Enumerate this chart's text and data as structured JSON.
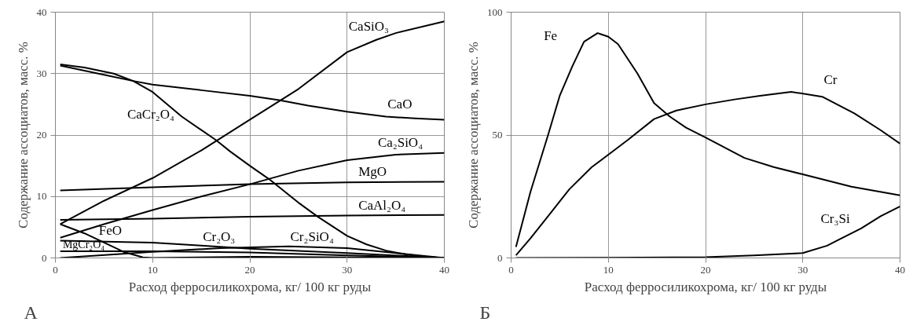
{
  "chart_data": [
    {
      "type": "line",
      "xlabel": "Расход ферросиликохрома, кг/ 100 кг руды",
      "ylabel": "Содержание ассоциатов, масс. %",
      "annotations": [
        "А"
      ],
      "xlim": [
        0,
        40
      ],
      "ylim": [
        0,
        40
      ],
      "xticks": [
        0,
        10,
        20,
        30,
        40
      ],
      "yticks": [
        0,
        10,
        20,
        30,
        40
      ],
      "grid": true,
      "legend": false,
      "marker": "none",
      "line_style": "solid",
      "series": [
        {
          "name": "CaSiO₃",
          "color": "#000000",
          "x": [
            0.5,
            5,
            10,
            15,
            20,
            25,
            30,
            33,
            35,
            40
          ],
          "values": [
            5.5,
            9.3,
            13,
            17.5,
            22.5,
            27.5,
            33.5,
            35.5,
            36.6,
            38.5
          ]
        },
        {
          "name": "CaCr₂O₄",
          "color": "#000000",
          "x": [
            0.5,
            3,
            6,
            8,
            10,
            13,
            16.5,
            18,
            20,
            22,
            25,
            27,
            30,
            32,
            34,
            36,
            38,
            40
          ],
          "values": [
            31.5,
            31,
            30,
            28.8,
            27,
            23,
            19.2,
            17.3,
            15,
            12.8,
            9,
            6.7,
            3.6,
            2.2,
            1.2,
            0.6,
            0.2,
            0
          ]
        },
        {
          "name": "CaO",
          "color": "#000000",
          "x": [
            0.5,
            5,
            8,
            10,
            15,
            20,
            23,
            26,
            30,
            34,
            37,
            40
          ],
          "values": [
            31.3,
            29.8,
            28.8,
            28.2,
            27.3,
            26.4,
            25.7,
            24.8,
            23.8,
            23,
            22.7,
            22.5
          ]
        },
        {
          "name": "Ca₂SiO₄",
          "color": "#000000",
          "x": [
            0.5,
            5,
            10,
            15,
            20,
            25,
            30,
            35,
            40
          ],
          "values": [
            3.3,
            5.5,
            7.8,
            10,
            12,
            14.2,
            15.9,
            16.8,
            17.1
          ]
        },
        {
          "name": "MgO",
          "color": "#000000",
          "x": [
            0.5,
            10,
            20,
            30,
            40
          ],
          "values": [
            11,
            11.5,
            12,
            12.3,
            12.4
          ]
        },
        {
          "name": "CaAl₂O₄",
          "color": "#000000",
          "x": [
            0.5,
            10,
            20,
            30,
            40
          ],
          "values": [
            6.2,
            6.4,
            6.7,
            6.9,
            7
          ]
        },
        {
          "name": "FeO",
          "color": "#000000",
          "x": [
            0.5,
            3,
            5,
            7,
            9,
            10,
            20,
            30,
            40
          ],
          "values": [
            5.5,
            4,
            2.5,
            1,
            0.1,
            0,
            0.2,
            0.1,
            0
          ]
        },
        {
          "name": "MgCr₂O₄",
          "color": "#000000",
          "x": [
            0.5,
            10,
            20,
            30,
            40
          ],
          "values": [
            1.1,
            1.1,
            0.9,
            0.4,
            0
          ]
        },
        {
          "name": "Cr₂O₃",
          "color": "#000000",
          "x": [
            0.5,
            10,
            15,
            20,
            30,
            40
          ],
          "values": [
            2.8,
            2.5,
            2.0,
            1.5,
            0.8,
            0
          ]
        },
        {
          "name": "Cr₂SiO₄",
          "color": "#000000",
          "x": [
            0.5,
            10,
            17,
            24,
            30,
            35,
            40
          ],
          "values": [
            0,
            1,
            1.6,
            1.9,
            1.6,
            0.8,
            0
          ]
        }
      ]
    },
    {
      "type": "line",
      "xlabel": "Расход ферросиликохрома, кг/ 100 кг руды",
      "ylabel": "Содержание ассоциатов, масс. %",
      "annotations": [
        "Б"
      ],
      "xlim": [
        0,
        40
      ],
      "ylim": [
        0,
        100
      ],
      "xticks": [
        0,
        10,
        20,
        30,
        40
      ],
      "yticks": [
        0,
        50,
        100
      ],
      "grid": true,
      "legend": false,
      "marker": "none",
      "line_style": "solid",
      "series": [
        {
          "name": "Fe",
          "color": "#000000",
          "x": [
            0.5,
            2,
            3.8,
            5,
            6.3,
            7.5,
            8.9,
            10,
            11,
            13,
            14.7,
            16.3,
            18,
            20,
            24,
            27,
            30,
            35,
            40
          ],
          "values": [
            4.5,
            27,
            50,
            66,
            78,
            88,
            91.5,
            90,
            87,
            75,
            63,
            57.6,
            53,
            49,
            40.7,
            37,
            34,
            29,
            25.5
          ]
        },
        {
          "name": "Cr",
          "color": "#000000",
          "x": [
            0.5,
            2,
            3.8,
            6,
            8.3,
            10,
            12,
            14.7,
            17,
            20,
            23,
            25.6,
            28.8,
            32,
            35.3,
            38,
            40
          ],
          "values": [
            1.1,
            8,
            17,
            28,
            37,
            42,
            48,
            56.5,
            60,
            62.5,
            64.5,
            66,
            67.6,
            65.6,
            58.8,
            52,
            46.5
          ]
        },
        {
          "name": "Cr₃Si",
          "color": "#000000",
          "x": [
            0.5,
            10,
            20,
            25,
            30,
            32.5,
            34,
            36,
            38,
            40
          ],
          "values": [
            0,
            0.1,
            0.3,
            1,
            2,
            5,
            8,
            12,
            17,
            21
          ]
        }
      ]
    }
  ]
}
